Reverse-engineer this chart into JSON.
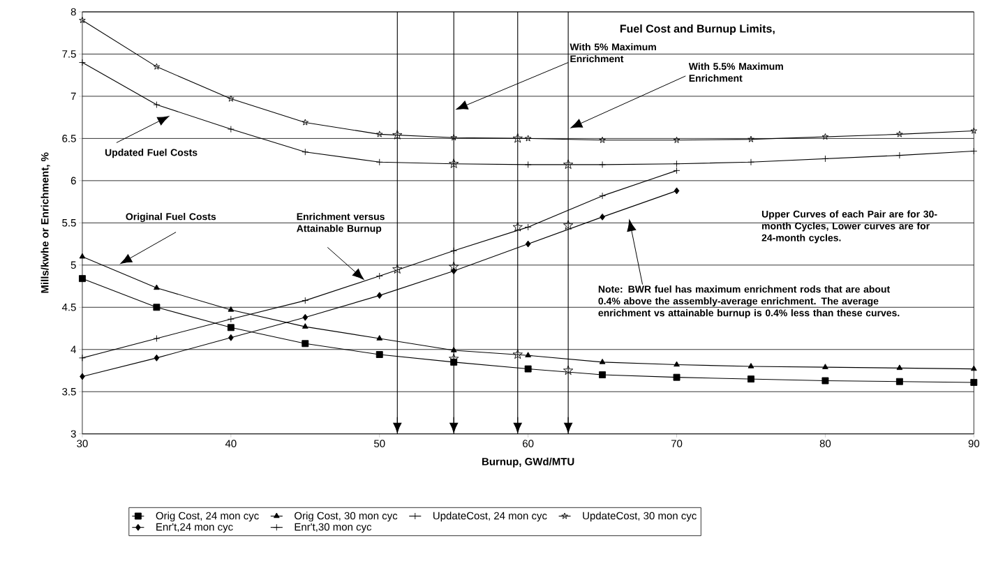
{
  "chart_data": {
    "type": "line",
    "title": "Fuel Cost and Burnup Limits,",
    "xlabel": "Burnup, GWd/MTU",
    "ylabel": "Mills/kwhe or Enrichment, %",
    "x": [
      30,
      35,
      40,
      45,
      50,
      55,
      60,
      65,
      70,
      75,
      80,
      85,
      90
    ],
    "xlim": [
      30,
      90
    ],
    "xticks": [
      30,
      40,
      50,
      60,
      70,
      80,
      90
    ],
    "ylim": [
      3,
      8
    ],
    "yticks": [
      3,
      3.5,
      4,
      4.5,
      5,
      5.5,
      6,
      6.5,
      7,
      7.5,
      8
    ],
    "grid": "y",
    "legend": "bottom",
    "series": [
      {
        "name": "Orig Cost, 24 mon cyc",
        "color": "#000000",
        "marker": "square",
        "values": [
          4.84,
          4.5,
          4.26,
          4.07,
          3.94,
          3.85,
          3.77,
          3.7,
          3.67,
          3.65,
          3.63,
          3.62,
          3.61
        ]
      },
      {
        "name": "Orig Cost, 30 mon cyc",
        "color": "#000000",
        "marker": "triangle",
        "values": [
          5.1,
          4.73,
          4.47,
          4.27,
          4.13,
          3.99,
          3.93,
          3.85,
          3.82,
          3.8,
          3.79,
          3.78,
          3.77
        ]
      },
      {
        "name": "UpdateCost, 24 mon cyc",
        "color": "#000000",
        "marker": "cross",
        "values": [
          7.4,
          6.9,
          6.61,
          6.34,
          6.22,
          6.2,
          6.19,
          6.19,
          6.2,
          6.22,
          6.26,
          6.3,
          6.35
        ]
      },
      {
        "name": "UpdateCost, 30 mon cyc",
        "color": "#000000",
        "marker": "star",
        "values": [
          7.9,
          7.35,
          6.97,
          6.69,
          6.55,
          6.51,
          6.5,
          6.48,
          6.48,
          6.49,
          6.52,
          6.55,
          6.59
        ]
      },
      {
        "name": "Enr't,24 mon cyc",
        "color": "#000000",
        "marker": "diamond",
        "x": [
          30,
          35,
          40,
          45,
          50,
          55,
          60,
          65,
          70
        ],
        "values": [
          3.68,
          3.9,
          4.14,
          4.38,
          4.64,
          4.93,
          5.25,
          5.57,
          5.88
        ]
      },
      {
        "name": "Enr't,30 mon cyc",
        "color": "#000000",
        "marker": "cross",
        "x": [
          30,
          35,
          40,
          45,
          50,
          55,
          60,
          65,
          70
        ],
        "values": [
          3.9,
          4.13,
          4.36,
          4.58,
          4.87,
          5.17,
          5.45,
          5.82,
          6.12
        ]
      },
      {
        "type": "scatter",
        "color": "#000000",
        "marker": "star",
        "x": [
          51.2,
          51.2,
          55.0,
          55.0,
          55.0,
          59.3,
          59.3,
          59.3,
          62.7,
          62.7,
          62.7
        ],
        "values": [
          6.54,
          4.95,
          6.2,
          4.98,
          3.89,
          6.5,
          5.45,
          3.94,
          6.19,
          5.47,
          3.75
        ]
      }
    ],
    "ref_lines": [
      {
        "axis": "x",
        "value": 51.2,
        "color": "#000000"
      },
      {
        "axis": "x",
        "value": 55.0,
        "color": "#000000"
      },
      {
        "axis": "x",
        "value": 59.3,
        "color": "#000000"
      },
      {
        "axis": "x",
        "value": 62.7,
        "color": "#000000"
      }
    ],
    "annotations": [
      "With 5% Maximum Enrichment",
      "With 5.5% Maximum Enrichment",
      "Updated Fuel Costs",
      "Original Fuel Costs",
      "Enrichment versus Attainable Burnup",
      "Upper Curves of each Pair are for 30-month Cycles, Lower curves are for 24-month cycles.",
      "Note: BWR fuel has maximum enrichment rods that are about 0.4% above the assembly-average enrichment.  The average enrichment vs attainable burnup is 0.4% less than these curves."
    ]
  }
}
